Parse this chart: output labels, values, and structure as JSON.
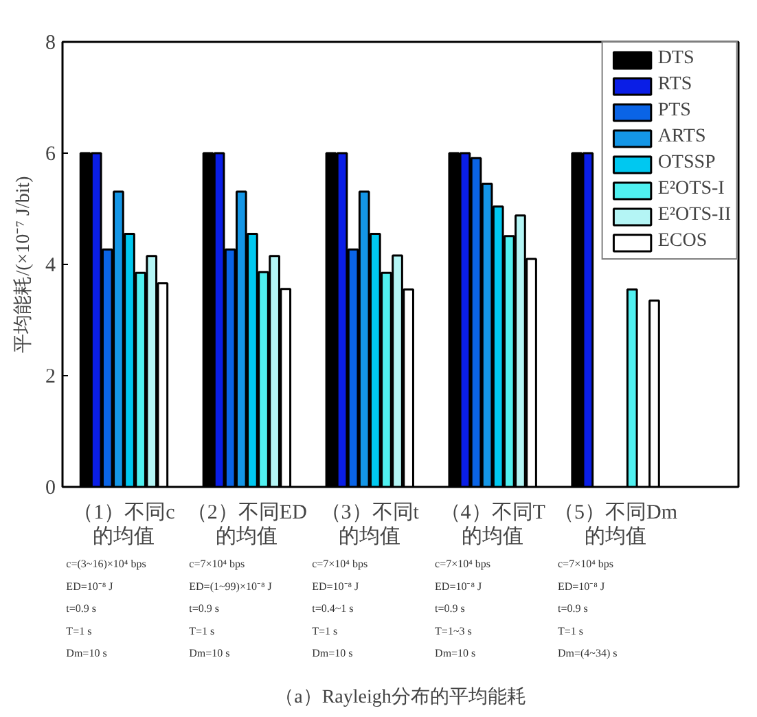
{
  "chart_data": {
    "type": "bar",
    "title": "（a）Rayleigh分布的平均能耗",
    "ylabel": "平均能耗/(×10⁻⁷ J/bit)",
    "categories": [
      "（1）不同c的均值",
      "（2）不同ED的均值",
      "（3）不同t的均值",
      "（4）不同T的均值",
      "（5）不同Dm的均值"
    ],
    "series": [
      {
        "name": "DTS",
        "color": "#000000",
        "values": [
          6,
          6,
          6,
          6,
          6
        ]
      },
      {
        "name": "RTS",
        "color": "#0a1ee6",
        "values": [
          6,
          6,
          6,
          6,
          6
        ]
      },
      {
        "name": "PTS",
        "color": "#0a64e6",
        "values": [
          4.27,
          4.27,
          4.27,
          5.91,
          null
        ]
      },
      {
        "name": "ARTS",
        "color": "#1496e6",
        "values": [
          5.31,
          5.31,
          5.31,
          5.45,
          null
        ]
      },
      {
        "name": "OTSSP",
        "color": "#00c8f0",
        "values": [
          4.55,
          4.55,
          4.55,
          5.04,
          null
        ]
      },
      {
        "name": "E²OTS-I",
        "color": "#50f0f0",
        "values": [
          3.85,
          3.86,
          3.85,
          4.51,
          3.55
        ]
      },
      {
        "name": "E²OTS-II",
        "color": "#b4f5f5",
        "values": [
          4.15,
          4.15,
          4.16,
          4.88,
          null
        ]
      },
      {
        "name": "ECOS",
        "color": "#ffffff",
        "values": [
          3.66,
          3.56,
          3.55,
          4.1,
          3.35
        ]
      }
    ],
    "ylim": [
      0,
      8
    ],
    "yticks": [
      0,
      2,
      4,
      6,
      8
    ],
    "legend": "top right",
    "annotations": [
      "c=(3~16)×10⁴ bps",
      "ED=10⁻⁸ J",
      "t=0.9 s",
      "T=1 s",
      "Dm=10 s",
      "c=7×10⁴ bps",
      "ED=(1~99)×10⁻⁸ J",
      "t=0.9 s",
      "T=1 s",
      "Dm=10 s",
      "c=7×10⁴ bps",
      "ED=10⁻⁸ J",
      "t=0.4~1 s",
      "T=1 s",
      "Dm=10 s",
      "c=7×10⁴ bps",
      "ED=10⁻⁸ J",
      "t=0.9 s",
      "T=1~3 s",
      "Dm=10 s",
      "c=7×10⁴ bps",
      "ED=10⁻⁸ J",
      "t=0.9 s",
      "T=1 s",
      "Dm=(4~34) s"
    ]
  }
}
